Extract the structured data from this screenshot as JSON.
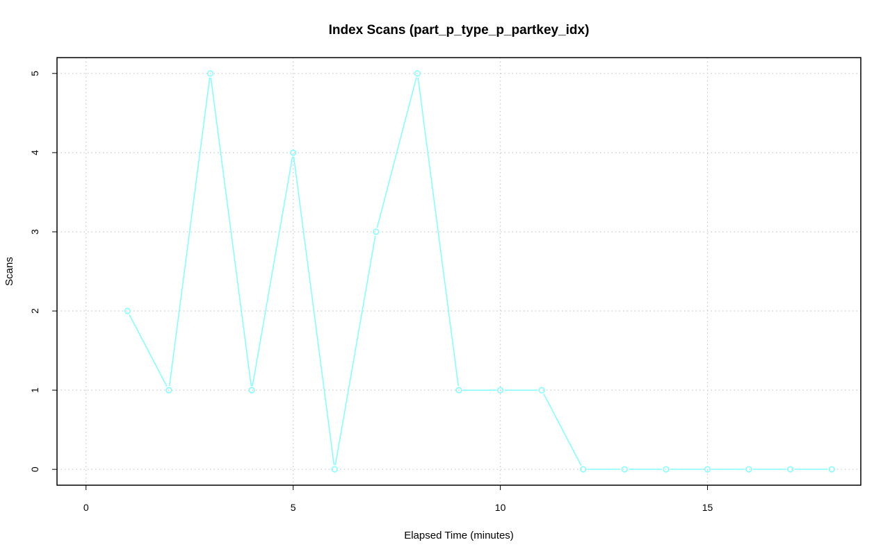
{
  "chart_data": {
    "type": "line",
    "title": "Index Scans (part_p_type_p_partkey_idx)",
    "xlabel": "Elapsed Time (minutes)",
    "ylabel": "Scans",
    "xlim": [
      -0.7,
      18.7
    ],
    "ylim": [
      -0.2,
      5.2
    ],
    "x_ticks": [
      0,
      5,
      10,
      15
    ],
    "y_ticks": [
      0,
      1,
      2,
      3,
      4,
      5
    ],
    "grid": true,
    "legend": "none",
    "series": [
      {
        "color": "#7fffff",
        "marker": "circle",
        "x": [
          1,
          2,
          3,
          4,
          5,
          6,
          7,
          8,
          9,
          10,
          11,
          12,
          13,
          14,
          15,
          16,
          17,
          18
        ],
        "y": [
          2,
          1,
          5,
          1,
          4,
          0,
          3,
          5,
          1,
          1,
          1,
          0,
          0,
          0,
          0,
          0,
          0,
          0
        ]
      }
    ]
  }
}
